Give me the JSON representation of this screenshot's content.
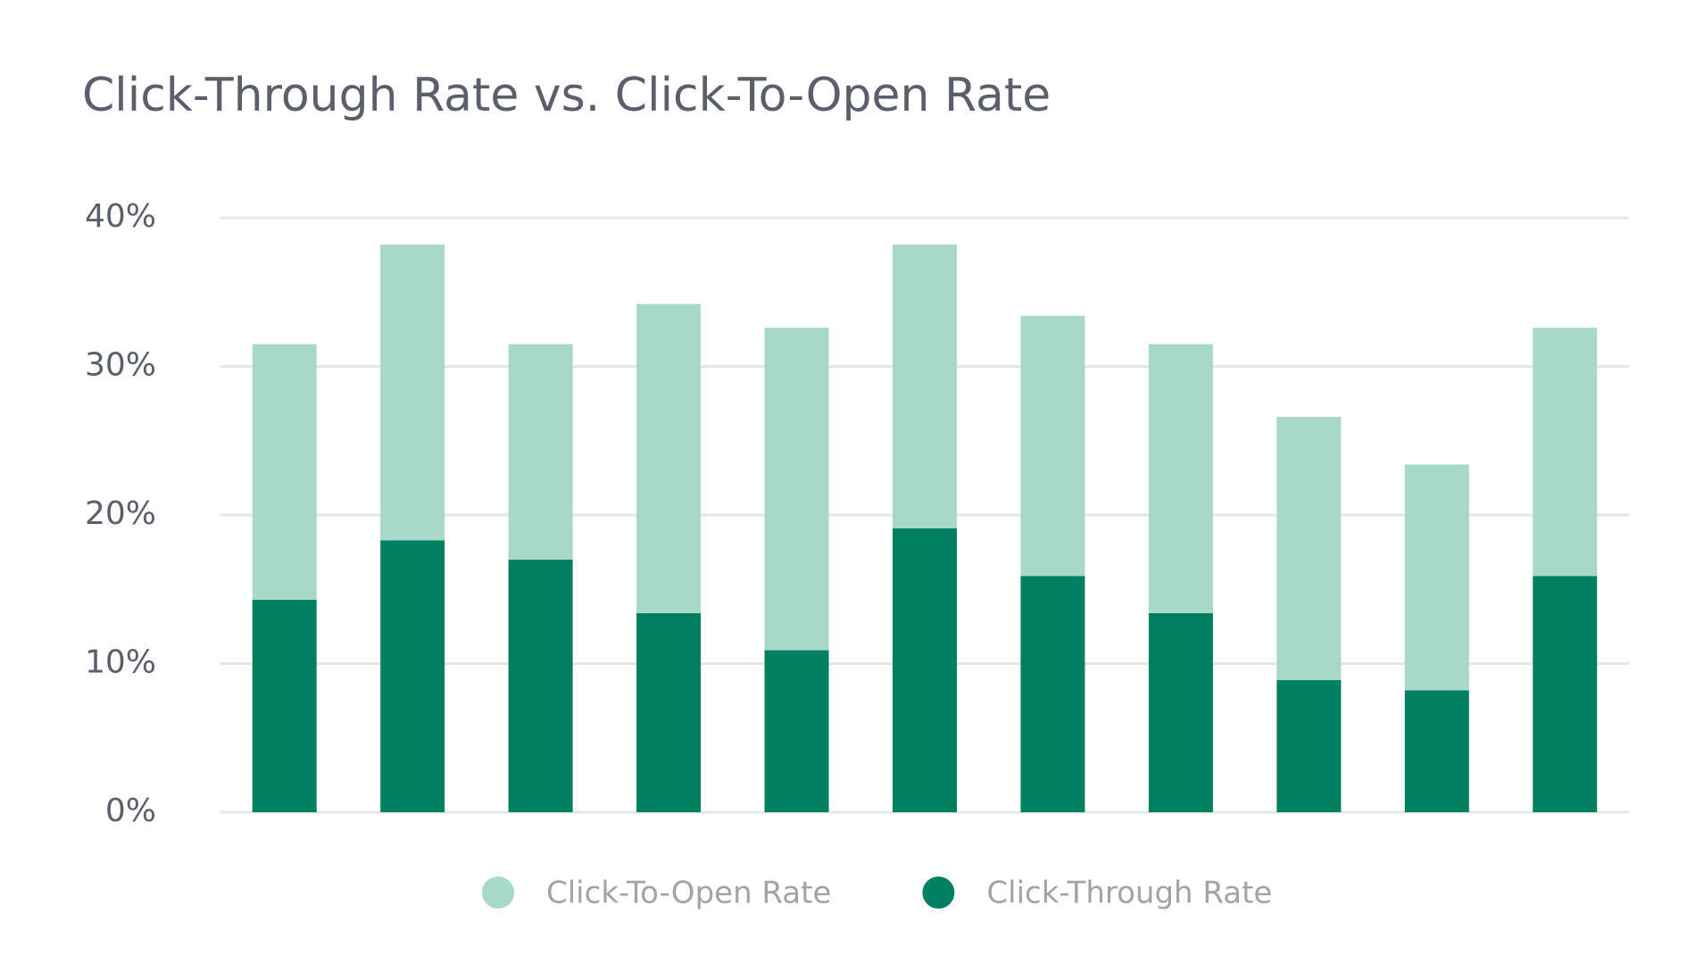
{
  "chart_data": {
    "type": "stacked_bar",
    "title": "Click-Through Rate vs. Click-To-Open Rate",
    "categories": [
      null,
      null,
      null,
      null,
      null,
      null,
      null,
      null,
      null,
      null,
      null
    ],
    "series": [
      {
        "name": "Click-Through Rate",
        "color": "#008060",
        "values": [
          14.3,
          18.3,
          17,
          13.4,
          10.9,
          19.1,
          15.9,
          13.4,
          8.9,
          8.2,
          15.9
        ]
      },
      {
        "name": "Click-To-Open Rate",
        "color": "#a8d8c8",
        "values": [
          17.2,
          19.9,
          14.5,
          20.8,
          21.7,
          19.1,
          17.5,
          18.1,
          17.7,
          15.2,
          16.7
        ]
      }
    ],
    "ylim": [
      0,
      40
    ],
    "yticks": [
      {
        "value": 0,
        "label": "0%"
      },
      {
        "value": 10,
        "label": "10%"
      },
      {
        "value": 20,
        "label": "20%"
      },
      {
        "value": 30,
        "label": "30%"
      },
      {
        "value": 40,
        "label": "40%"
      }
    ],
    "grid": true
  }
}
